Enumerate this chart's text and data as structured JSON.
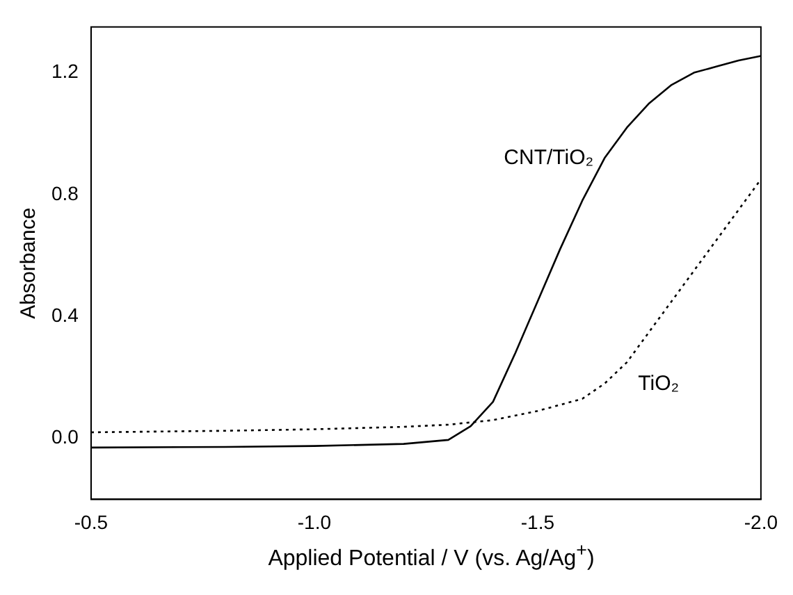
{
  "chart_data": {
    "type": "line",
    "xlabel": "Applied Potential / V (vs. Ag/Ag$^{+}$)",
    "ylabel": "Absorbance",
    "xlim": [
      -0.5,
      -2.0
    ],
    "xticks": [
      -0.5,
      {
        "value": -1,
        "label": "-1.0"
      },
      -1.5,
      {
        "value": -2,
        "label": "-2.0"
      }
    ],
    "ylim": [
      -0.2,
      1.35
    ],
    "yticks": [
      {
        "value": 0,
        "label": "0.0"
      },
      0.4,
      0.8,
      1.2
    ],
    "grid": false,
    "legend": false,
    "marker": "none",
    "series": [
      {
        "color": "#000000",
        "line_style": "solid",
        "x": [
          -0.5,
          -0.8,
          -1.0,
          -1.2,
          -1.3,
          -1.35,
          -1.4,
          -1.45,
          -1.5,
          -1.55,
          -1.6,
          -1.65,
          -1.7,
          -1.75,
          -1.8,
          -1.85,
          -1.9,
          -1.95,
          -2.0
        ],
        "values": [
          -0.03,
          -0.028,
          -0.025,
          -0.018,
          -0.005,
          0.04,
          0.12,
          0.28,
          0.45,
          0.62,
          0.78,
          0.92,
          1.02,
          1.1,
          1.16,
          1.2,
          1.22,
          1.24,
          1.255
        ]
      },
      {
        "color": "#000000",
        "line_style": "dotted",
        "x": [
          -0.5,
          -0.8,
          -1.0,
          -1.2,
          -1.3,
          -1.4,
          -1.5,
          -1.6,
          -1.65,
          -1.7,
          -1.75,
          -1.8,
          -1.85,
          -1.9,
          -1.95,
          -2.0
        ],
        "values": [
          0.02,
          0.025,
          0.03,
          0.038,
          0.045,
          0.06,
          0.09,
          0.13,
          0.18,
          0.25,
          0.35,
          0.45,
          0.55,
          0.65,
          0.75,
          0.85
        ]
      }
    ],
    "annotations": [
      "CNT/TiO₂",
      "TiO₂"
    ]
  }
}
